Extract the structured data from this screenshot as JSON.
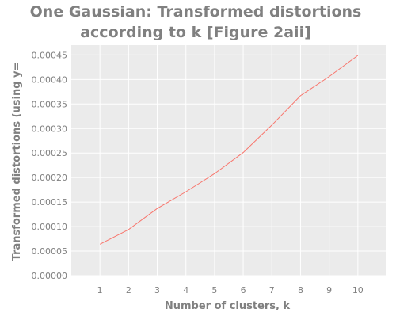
{
  "chart_data": {
    "type": "line",
    "title_lines": [
      "One Gaussian: Transformed distortions",
      "according to k [Figure 2aii]"
    ],
    "xlabel": "Number of clusters, k",
    "ylabel": "Transformed distortions (using y=",
    "x": [
      1,
      2,
      3,
      4,
      5,
      6,
      7,
      8,
      9,
      10
    ],
    "series": [
      {
        "values": [
          6.4e-05,
          9.4e-05,
          0.000137,
          0.000171,
          0.000208,
          0.000251,
          0.000307,
          0.000367,
          0.000406,
          0.000449
        ]
      }
    ],
    "xlim": [
      0,
      11
    ],
    "ylim": [
      0,
      0.00047
    ],
    "xticks": [
      1,
      2,
      3,
      4,
      5,
      6,
      7,
      8,
      9,
      10
    ],
    "xtick_labels": [
      "1",
      "2",
      "3",
      "4",
      "5",
      "6",
      "7",
      "8",
      "9",
      "10"
    ],
    "yticks": [
      0,
      5e-05,
      0.0001,
      0.00015,
      0.0002,
      0.00025,
      0.0003,
      0.00035,
      0.0004,
      0.00045
    ],
    "ytick_labels": [
      "0.00000",
      "0.00005",
      "0.00010",
      "0.00015",
      "0.00020",
      "0.00025",
      "0.00030",
      "0.00035",
      "0.00040",
      "0.00045"
    ],
    "grid": true,
    "colors": {
      "plot_background": "#ebebeb",
      "grid": "#ffffff",
      "line": "#f8766d",
      "text": "#808080"
    }
  }
}
